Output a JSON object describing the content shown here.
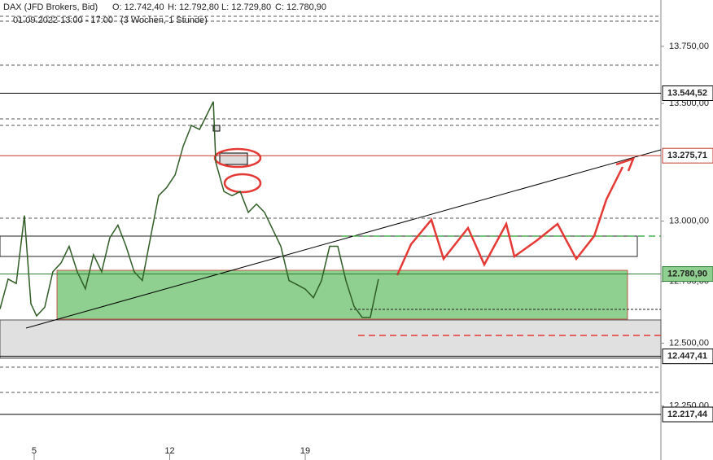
{
  "chart_data": {
    "type": "line",
    "symbol": "DAX (JFD Brokers, Bid)",
    "ohlc": [
      "O: 12.742,40",
      "H: 12.792,80",
      "L: 12.729,80",
      "C: 12.780,90"
    ],
    "period": "01.09.2022 13:00 - 17:00",
    "range": "(3 Wochen, 1 Stunde)",
    "log_scale": true,
    "xlim": [
      -1.26,
      23.12
    ],
    "xticks": [
      {
        "value": 0,
        "label": "5"
      },
      {
        "value": 5,
        "label": "12"
      },
      {
        "value": 10,
        "label": "19"
      }
    ],
    "ylim": [
      12040,
      13956
    ],
    "yticks": [
      {
        "value": 13750,
        "label": "13.750,00"
      },
      {
        "value": 13500,
        "label": "13.500,00"
      },
      {
        "value": 13000,
        "label": "13.000,00"
      },
      {
        "value": 12750,
        "label": "12.750,00"
      },
      {
        "value": 12500,
        "label": "12.500,00"
      },
      {
        "value": 12250,
        "label": "12.250,00"
      }
    ],
    "series": [
      {
        "color": "#2f5d25",
        "x": [
          -1.26,
          -0.96,
          -0.66,
          -0.36,
          -0.12,
          0.09,
          0.39,
          0.69,
          0.99,
          1.29,
          1.59,
          1.89,
          2.19,
          2.49,
          2.79,
          3.09,
          3.39,
          3.69,
          3.99,
          4.29,
          4.59,
          4.89,
          5.2,
          5.5,
          5.8,
          6.1,
          6.4,
          6.61,
          6.7,
          7.0,
          7.3,
          7.6,
          7.9,
          8.2,
          8.5,
          8.8,
          9.1,
          9.4,
          9.7,
          10.0,
          10.3,
          10.6,
          10.9,
          11.2,
          11.5,
          11.8,
          12.1,
          12.4,
          12.7
        ],
        "values": [
          12638,
          12760,
          12742,
          13023,
          12660,
          12610,
          12645,
          12790,
          12826,
          12895,
          12790,
          12720,
          12860,
          12790,
          12930,
          12983,
          12895,
          12790,
          12754,
          12930,
          13106,
          13141,
          13194,
          13317,
          13405,
          13388,
          13458,
          13508,
          13247,
          13124,
          13106,
          13124,
          13036,
          13071,
          13036,
          12965,
          12895,
          12754,
          12737,
          12719,
          12684,
          12754,
          12895,
          12895,
          12754,
          12649,
          12604,
          12604,
          12760
        ]
      }
    ],
    "levels": [
      {
        "value": 13544.52,
        "label": "13.544,52",
        "color": "#000000"
      },
      {
        "value": 13275.71,
        "label": "13.275,71",
        "color": "#c0392b"
      },
      {
        "value": 12780.9,
        "label": "12.780,90",
        "color": "#2e7d32"
      },
      {
        "value": 12447.41,
        "label": "12.447,41",
        "color": "#000000"
      },
      {
        "value": 12217.44,
        "label": "12.217,44",
        "color": "#000000"
      }
    ]
  }
}
